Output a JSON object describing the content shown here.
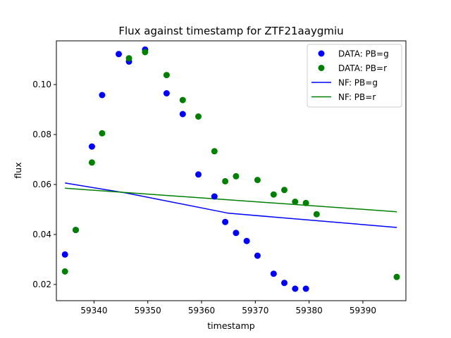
{
  "chart_data": {
    "type": "scatter",
    "title": "Flux against timestamp for ZTF21aaygmiu",
    "xlabel": "timestamp",
    "ylabel": "flux",
    "xlim": [
      59333.0,
      59398.0
    ],
    "ylim": [
      0.0135,
      0.1175
    ],
    "xticks": [
      59340,
      59350,
      59360,
      59370,
      59380,
      59390
    ],
    "xtick_labels": [
      "59340",
      "59350",
      "59360",
      "59370",
      "59380",
      "59390"
    ],
    "yticks": [
      0.02,
      0.04,
      0.06,
      0.08,
      0.1
    ],
    "ytick_labels": [
      "0.02",
      "0.04",
      "0.06",
      "0.08",
      "0.10"
    ],
    "grid": false,
    "legend_position": "top-right",
    "series": [
      {
        "name": "DATA: PB=g",
        "kind": "scatter",
        "color": "#0000ff",
        "x": [
          59334.6,
          59336.6,
          59339.6,
          59341.5,
          59344.6,
          59346.5,
          59349.5,
          59353.5,
          59356.5,
          59359.4,
          59362.4,
          59364.4,
          59366.4,
          59368.4,
          59370.4,
          59373.4,
          59375.4,
          59377.4,
          59379.4
        ],
        "y": [
          0.032,
          0.0418,
          0.0752,
          0.0958,
          0.1122,
          0.1092,
          0.114,
          0.0965,
          0.0882,
          0.064,
          0.0552,
          0.045,
          0.0406,
          0.0374,
          0.0315,
          0.0243,
          0.0206,
          0.0183,
          0.0183
        ]
      },
      {
        "name": "DATA: PB=r",
        "kind": "scatter",
        "color": "#008000",
        "x": [
          59334.6,
          59336.6,
          59339.6,
          59341.5,
          59346.5,
          59349.5,
          59353.5,
          59356.5,
          59359.4,
          59362.4,
          59364.4,
          59366.4,
          59370.4,
          59373.4,
          59375.4,
          59377.4,
          59379.4,
          59381.4,
          59396.3
        ],
        "y": [
          0.0252,
          0.0418,
          0.0688,
          0.0805,
          0.1105,
          0.113,
          0.1038,
          0.0938,
          0.0872,
          0.0733,
          0.0613,
          0.0633,
          0.0618,
          0.056,
          0.0578,
          0.0531,
          0.0526,
          0.0481,
          0.023
        ]
      },
      {
        "name": "NF: PB=g",
        "kind": "line",
        "color": "#0000ff",
        "x": [
          59334.6,
          59346.0,
          59365.0,
          59396.3
        ],
        "y": [
          0.0606,
          0.0566,
          0.0485,
          0.0428
        ]
      },
      {
        "name": "NF: PB=r",
        "kind": "line",
        "color": "#008000",
        "x": [
          59334.6,
          59396.3
        ],
        "y": [
          0.0585,
          0.0491
        ]
      }
    ]
  }
}
